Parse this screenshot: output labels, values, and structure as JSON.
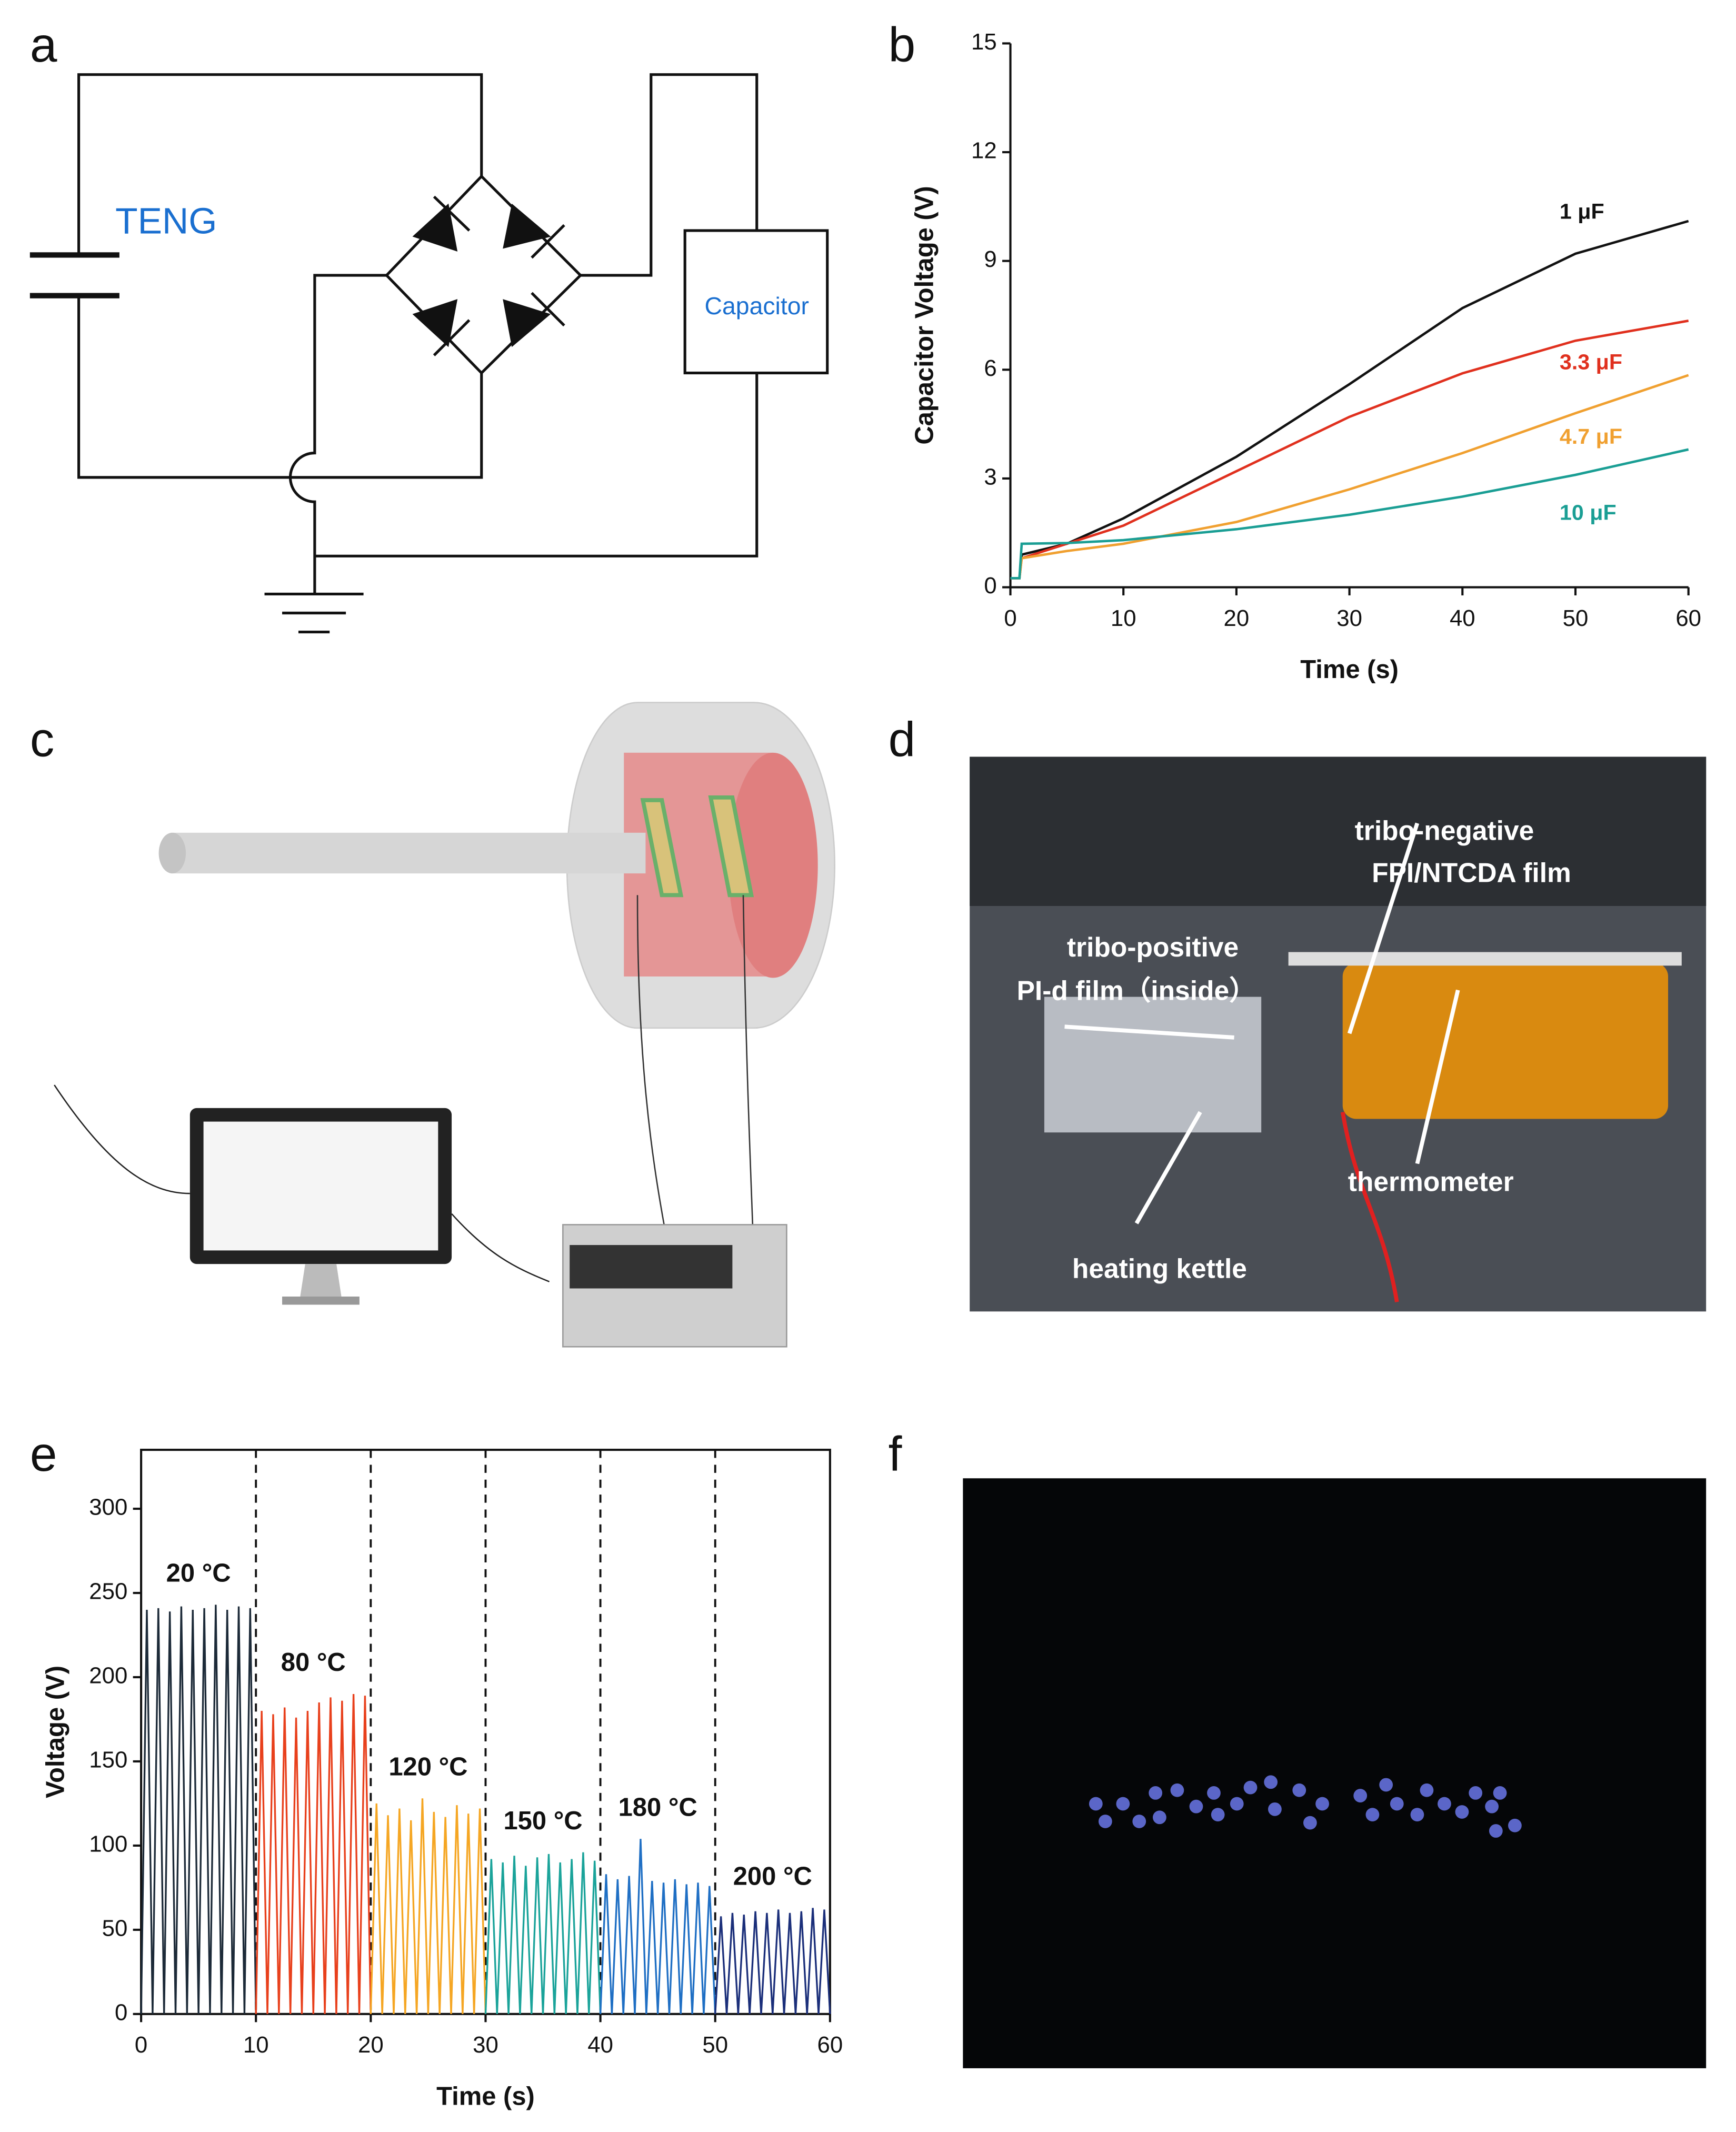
{
  "panels": [
    "a",
    "b",
    "c",
    "d",
    "e",
    "f"
  ],
  "circuit": {
    "source": "TENG",
    "load": "Capacitor"
  },
  "photo": {
    "labels": [
      "tribo-negative",
      "FPI/NTCDA film",
      "tribo-positive",
      "PI-d film（inside）",
      "thermometer",
      "heating kettle"
    ]
  },
  "chart_data": [
    {
      "type": "line",
      "xlabel": "Time (s)",
      "ylabel": "Capacitor Voltage (V)",
      "x": [
        0,
        0.8,
        1,
        5,
        10,
        20,
        30,
        40,
        50,
        60
      ],
      "xlim": [
        0,
        60
      ],
      "xticks": [
        0,
        10,
        20,
        30,
        40,
        50,
        60
      ],
      "ylim": [
        0,
        15
      ],
      "yticks": [
        0,
        3,
        6,
        9,
        12,
        15
      ],
      "series": [
        {
          "name": "1 μF",
          "color": "#111111",
          "values": [
            0.25,
            0.25,
            0.9,
            1.2,
            1.9,
            3.6,
            5.6,
            7.7,
            9.2,
            10.1
          ]
        },
        {
          "name": "3.3 μF",
          "color": "#e0301e",
          "values": [
            0.25,
            0.25,
            0.8,
            1.2,
            1.7,
            3.2,
            4.7,
            5.9,
            6.8,
            7.35
          ]
        },
        {
          "name": "4.7 μF",
          "color": "#f0a030",
          "values": [
            0.25,
            0.25,
            0.8,
            1.0,
            1.2,
            1.8,
            2.7,
            3.7,
            4.8,
            5.85
          ]
        },
        {
          "name": "10 μF",
          "color": "#1a9e94",
          "values": [
            0.25,
            0.25,
            1.2,
            1.22,
            1.3,
            1.6,
            2.0,
            2.5,
            3.1,
            3.8
          ]
        }
      ]
    },
    {
      "type": "line",
      "xlabel": "Time (s)",
      "ylabel": "Voltage (V)",
      "xlim": [
        0,
        60
      ],
      "xticks": [
        0,
        10,
        20,
        30,
        40,
        50,
        60
      ],
      "ylim": [
        0,
        335
      ],
      "yticks": [
        0,
        50,
        100,
        150,
        200,
        250,
        300
      ],
      "dividers": [
        10,
        20,
        30,
        40,
        50
      ],
      "series": [
        {
          "name": "20 °C",
          "color": "#1c2a38",
          "x": [
            0,
            0.5,
            1,
            1.5,
            2,
            2.5,
            3,
            3.5,
            4,
            4.5,
            5,
            5.5,
            6,
            6.5,
            7,
            7.5,
            8,
            8.5,
            9,
            9.5,
            10
          ],
          "values": [
            0,
            240,
            0,
            241,
            0,
            239,
            0,
            242,
            0,
            240,
            0,
            241,
            0,
            243,
            0,
            240,
            0,
            242,
            0,
            241,
            0
          ]
        },
        {
          "name": "80 °C",
          "color": "#e8401c",
          "x": [
            10,
            10.5,
            11,
            11.5,
            12,
            12.5,
            13,
            13.5,
            14,
            14.5,
            15,
            15.5,
            16,
            16.5,
            17,
            17.5,
            18,
            18.5,
            19,
            19.5,
            20
          ],
          "values": [
            0,
            180,
            0,
            178,
            0,
            182,
            0,
            176,
            0,
            180,
            0,
            185,
            0,
            188,
            0,
            186,
            0,
            190,
            0,
            189,
            0
          ]
        },
        {
          "name": "120 °C",
          "color": "#f5a623",
          "x": [
            20,
            20.5,
            21,
            21.5,
            22,
            22.5,
            23,
            23.5,
            24,
            24.5,
            25,
            25.5,
            26,
            26.5,
            27,
            27.5,
            28,
            28.5,
            29,
            29.5,
            30
          ],
          "values": [
            0,
            125,
            0,
            118,
            0,
            122,
            0,
            115,
            0,
            128,
            0,
            120,
            0,
            117,
            0,
            124,
            0,
            119,
            0,
            122,
            0
          ]
        },
        {
          "name": "150 °C",
          "color": "#1aa39a",
          "x": [
            30,
            30.5,
            31,
            31.5,
            32,
            32.5,
            33,
            33.5,
            34,
            34.5,
            35,
            35.5,
            36,
            36.5,
            37,
            37.5,
            38,
            38.5,
            39,
            39.5,
            40
          ],
          "values": [
            0,
            92,
            0,
            90,
            0,
            94,
            0,
            88,
            0,
            93,
            0,
            95,
            0,
            90,
            0,
            92,
            0,
            96,
            0,
            91,
            0
          ]
        },
        {
          "name": "180 °C",
          "color": "#1f6fc4",
          "x": [
            40,
            40.5,
            41,
            41.5,
            42,
            42.5,
            43,
            43.5,
            44,
            44.5,
            45,
            45.5,
            46,
            46.5,
            47,
            47.5,
            48,
            48.5,
            49,
            49.5,
            50
          ],
          "values": [
            0,
            83,
            0,
            80,
            0,
            82,
            0,
            104,
            0,
            79,
            0,
            78,
            0,
            80,
            0,
            77,
            0,
            78,
            0,
            76,
            0
          ]
        },
        {
          "name": "200 °C",
          "color": "#1b2f7a",
          "x": [
            50,
            50.5,
            51,
            51.5,
            52,
            52.5,
            53,
            53.5,
            54,
            54.5,
            55,
            55.5,
            56,
            56.5,
            57,
            57.5,
            58,
            58.5,
            59,
            59.5,
            60
          ],
          "values": [
            0,
            58,
            0,
            60,
            0,
            59,
            0,
            61,
            0,
            60,
            0,
            62,
            0,
            60,
            0,
            61,
            0,
            63,
            0,
            62,
            0
          ]
        }
      ]
    }
  ]
}
